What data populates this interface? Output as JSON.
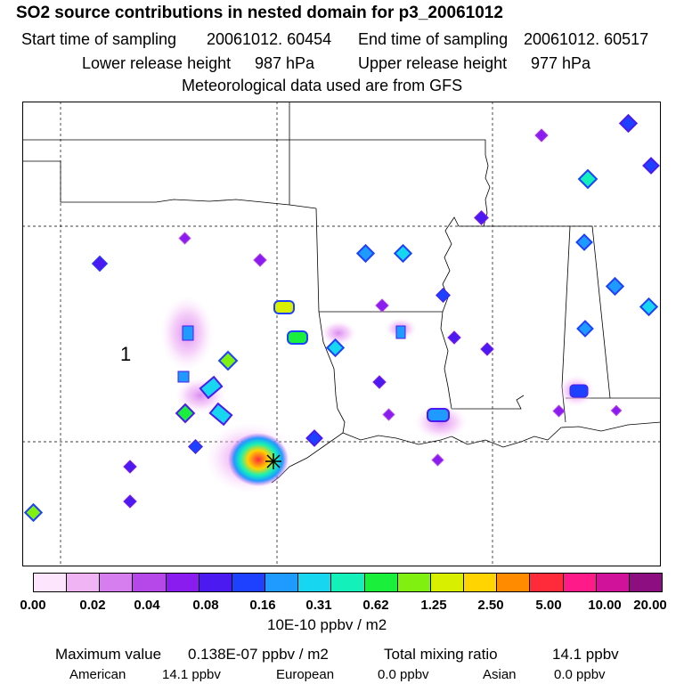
{
  "header": {
    "title": "SO2 source contributions in nested domain for p3_20061012",
    "start_label": "Start time of sampling",
    "start_value": "20061012. 60454",
    "end_label": "End time of sampling",
    "end_value": "20061012. 60517",
    "lower_label": "Lower release height",
    "lower_value": "987 hPa",
    "upper_label": "Upper release height",
    "upper_value": "977 hPa",
    "met": "Meteorological data used are from GFS"
  },
  "map": {
    "region_label": "1",
    "source_marker": "plus-cross"
  },
  "colorbar": {
    "colors": [
      "#fde6fd",
      "#f0b4f5",
      "#d67ef0",
      "#b648ea",
      "#8a1cf0",
      "#4b1af0",
      "#1e40ff",
      "#1f9bff",
      "#17d6f0",
      "#13f0b9",
      "#1af03c",
      "#80f010",
      "#d8f000",
      "#ffd400",
      "#ff8c00",
      "#ff2a3a",
      "#ff1a8a",
      "#d0129a",
      "#8d0e80"
    ],
    "tick_labels": [
      "0.00",
      "0.02",
      "0.04",
      "0.08",
      "0.16",
      "0.31",
      "0.62",
      "1.25",
      "2.50",
      "5.00",
      "10.00",
      "20.00"
    ],
    "units": "10E-10 ppbv / m2"
  },
  "stats": {
    "max_label": "Maximum value",
    "max_value": "0.138E-07 ppbv / m2",
    "total_label": "Total mixing ratio",
    "total_value": "14.1 ppbv",
    "american_label": "American",
    "american_value": "14.1 ppbv",
    "european_label": "European",
    "european_value": "0.0 ppbv",
    "asian_label": "Asian",
    "asian_value": "0.0 ppbv"
  }
}
